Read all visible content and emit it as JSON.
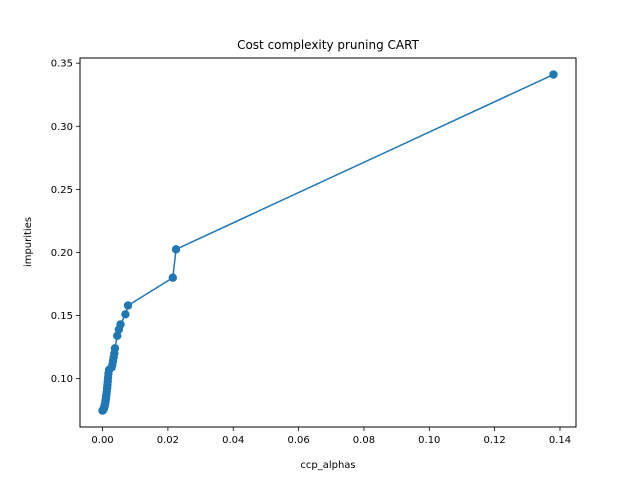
{
  "chart_data": {
    "type": "line",
    "title": "Cost complexity pruning CART",
    "xlabel": "ccp_alphas",
    "ylabel": "impurities",
    "xlim": [
      -0.0069,
      0.1449
    ],
    "ylim": [
      0.0617,
      0.3541
    ],
    "xticks": [
      0.0,
      0.02,
      0.04,
      0.06,
      0.08,
      0.1,
      0.12,
      0.14
    ],
    "xtick_labels": [
      "0.00",
      "0.02",
      "0.04",
      "0.06",
      "0.08",
      "0.10",
      "0.12",
      "0.14"
    ],
    "yticks": [
      0.1,
      0.15,
      0.2,
      0.25,
      0.3,
      0.35
    ],
    "ytick_labels": [
      "0.10",
      "0.15",
      "0.20",
      "0.25",
      "0.30",
      "0.35"
    ],
    "grid": false,
    "marker": "circle",
    "series": [
      {
        "color": "#1f77b4",
        "points": [
          [
            0.0,
            0.0747
          ],
          [
            0.0002,
            0.0752
          ],
          [
            0.0003,
            0.0757
          ],
          [
            0.0004,
            0.0763
          ],
          [
            0.0005,
            0.0772
          ],
          [
            0.0006,
            0.0781
          ],
          [
            0.0007,
            0.0792
          ],
          [
            0.0008,
            0.0805
          ],
          [
            0.0009,
            0.0822
          ],
          [
            0.001,
            0.0838
          ],
          [
            0.0011,
            0.0857
          ],
          [
            0.0012,
            0.0878
          ],
          [
            0.0013,
            0.09
          ],
          [
            0.0014,
            0.0925
          ],
          [
            0.0015,
            0.0952
          ],
          [
            0.0016,
            0.098
          ],
          [
            0.0017,
            0.101
          ],
          [
            0.0018,
            0.104
          ],
          [
            0.002,
            0.107
          ],
          [
            0.0028,
            0.109
          ],
          [
            0.003,
            0.111
          ],
          [
            0.0032,
            0.114
          ],
          [
            0.0034,
            0.117
          ],
          [
            0.0036,
            0.12
          ],
          [
            0.0038,
            0.124
          ],
          [
            0.0045,
            0.134
          ],
          [
            0.005,
            0.139
          ],
          [
            0.0055,
            0.143
          ],
          [
            0.007,
            0.151
          ],
          [
            0.0078,
            0.158
          ],
          [
            0.0215,
            0.18
          ],
          [
            0.0225,
            0.2025
          ],
          [
            0.138,
            0.341
          ]
        ]
      }
    ]
  }
}
